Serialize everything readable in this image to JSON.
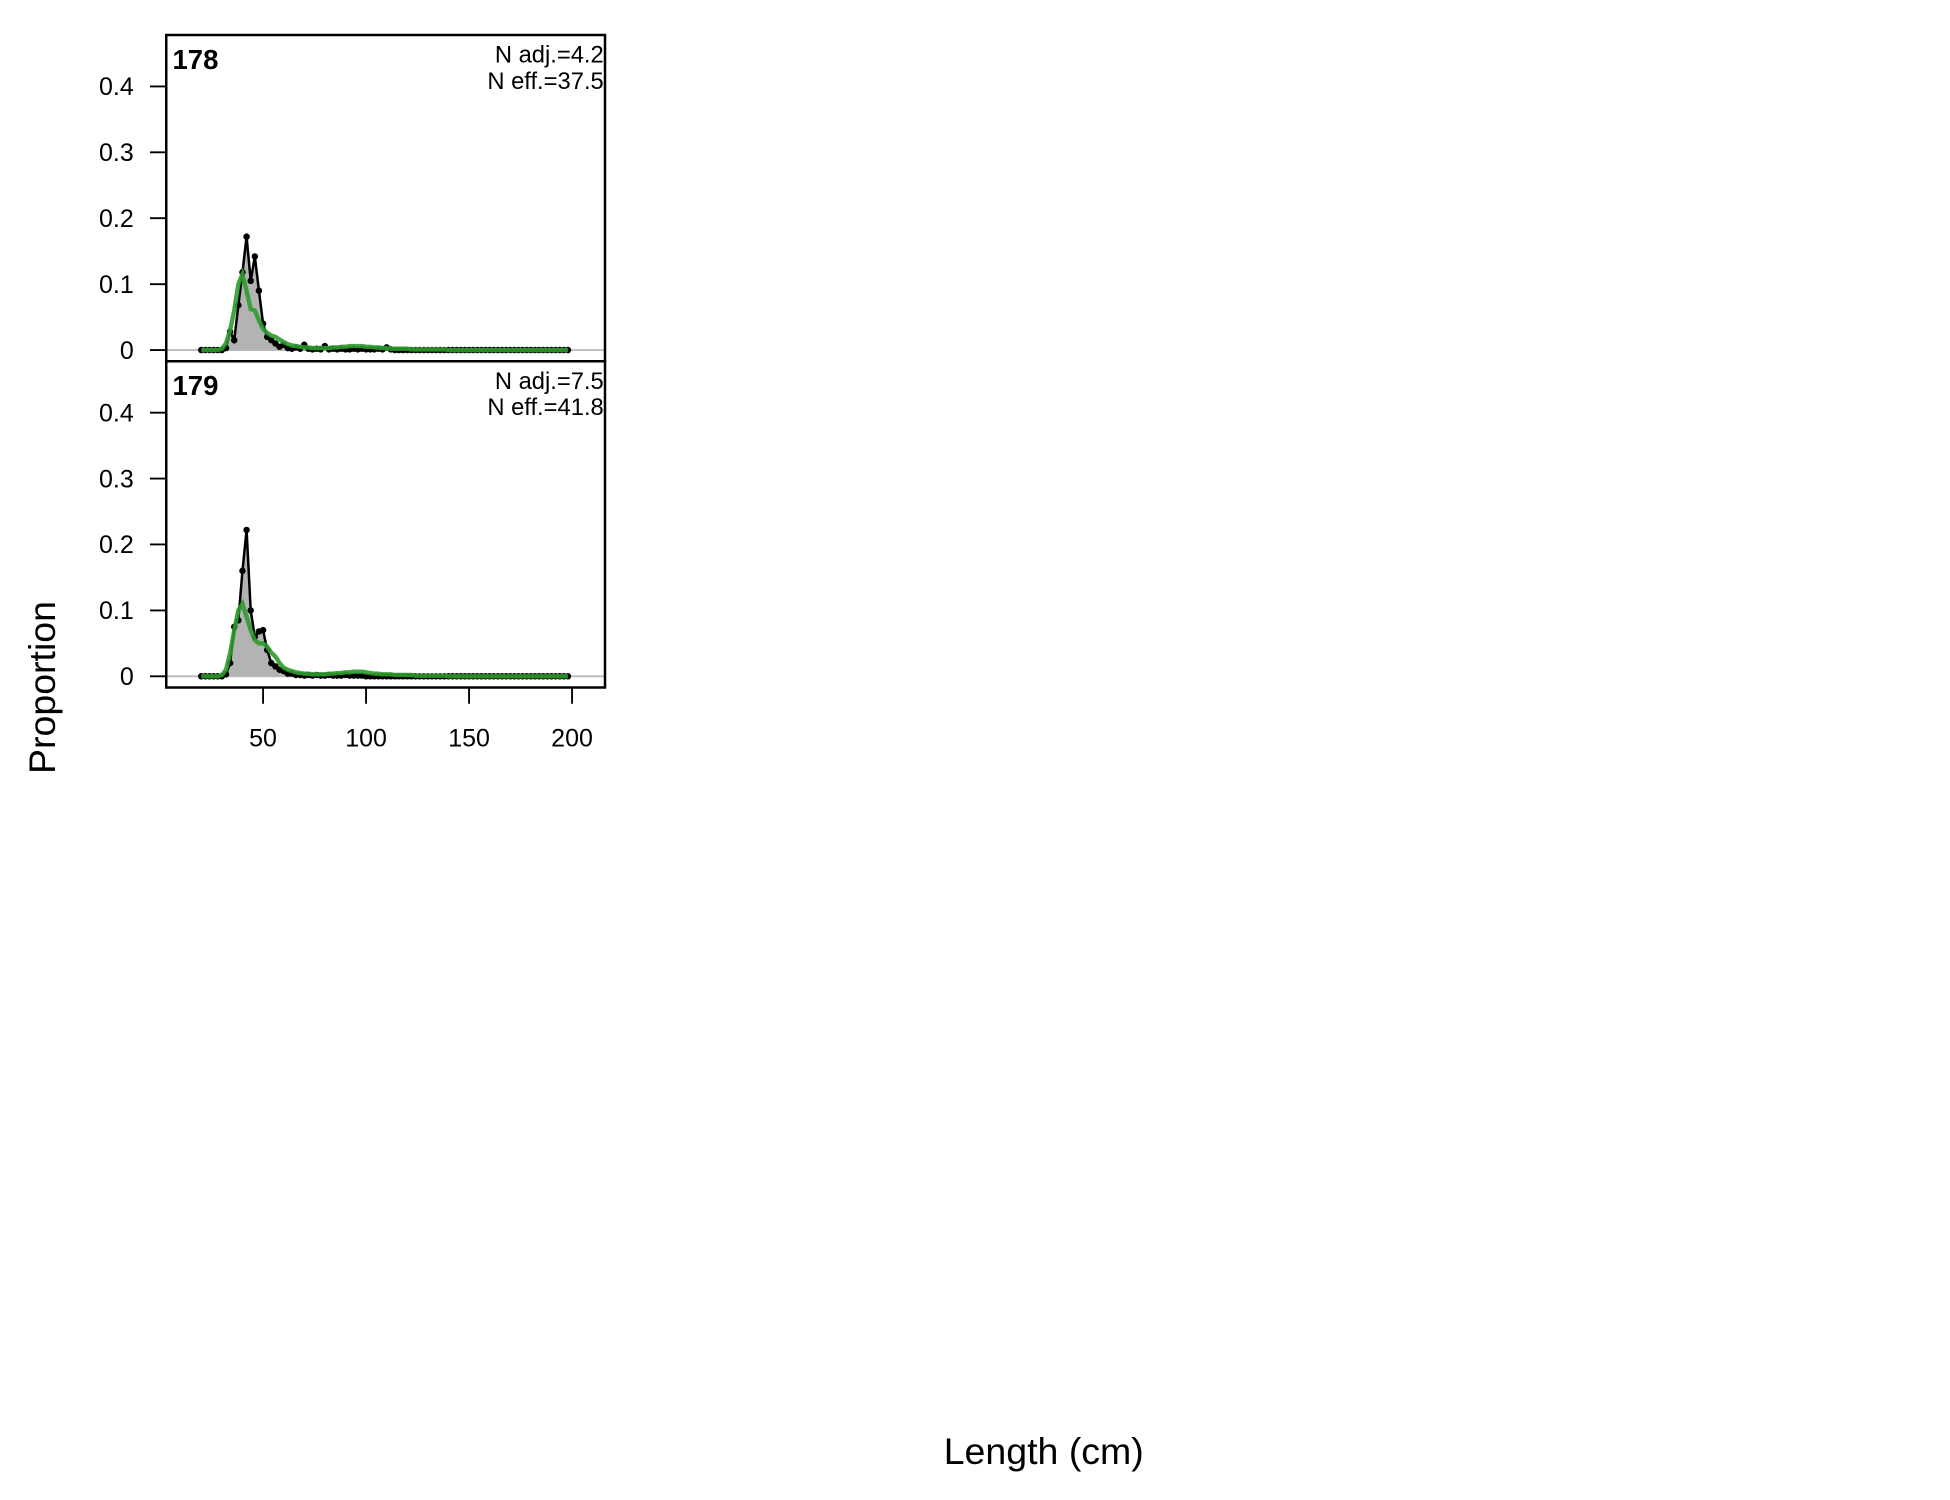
{
  "xlabel": "Length (cm)",
  "ylabel": "Proportion",
  "chart_data": [
    {
      "type": "line",
      "label": "178",
      "annotations": [
        "N adj.=4.2",
        "N eff.=37.5"
      ],
      "x": [
        20,
        22,
        24,
        26,
        28,
        30,
        32,
        34,
        36,
        38,
        40,
        42,
        44,
        46,
        48,
        50,
        52,
        54,
        56,
        58,
        60,
        62,
        64,
        66,
        68,
        70,
        72,
        74,
        76,
        78,
        80,
        82,
        84,
        86,
        88,
        90,
        92,
        94,
        96,
        98,
        100,
        102,
        104,
        106,
        108,
        110,
        112,
        114,
        116,
        118,
        120,
        122,
        124,
        126,
        128,
        130,
        132,
        134,
        136,
        138,
        140,
        142,
        144,
        146,
        148,
        150,
        152,
        154,
        156,
        158,
        160,
        162,
        164,
        166,
        168,
        170,
        172,
        174,
        176,
        178,
        180,
        182,
        184,
        186,
        188,
        190,
        192,
        194,
        196,
        198
      ],
      "xlim": [
        3,
        216
      ],
      "ylim": [
        -0.017,
        0.478
      ],
      "yticks": [
        0,
        0.1,
        0.2,
        0.3,
        0.4
      ],
      "series": [
        {
          "color": "#000000",
          "fill": "#b3b3b3",
          "values": [
            0,
            0,
            0,
            0,
            0,
            0,
            0.003,
            0.028,
            0.015,
            0.068,
            0.118,
            0.172,
            0.105,
            0.142,
            0.09,
            0.04,
            0.02,
            0.015,
            0.01,
            0.005,
            0.008,
            0.003,
            0.002,
            0.004,
            0.002,
            0.008,
            0.002,
            0.001,
            0.002,
            0.001,
            0.006,
            0.001,
            0.002,
            0.001,
            0.002,
            0.001,
            0.001,
            0.002,
            0.001,
            0.002,
            0.001,
            0.001,
            0.001,
            0.002,
            0.001,
            0.004,
            0.001,
            0,
            0,
            0,
            0,
            0,
            0,
            0,
            0,
            0,
            0,
            0,
            0,
            0,
            0,
            0,
            0,
            0,
            0,
            0,
            0,
            0,
            0,
            0,
            0,
            0,
            0,
            0,
            0,
            0,
            0,
            0,
            0,
            0,
            0,
            0,
            0,
            0,
            0,
            0,
            0,
            0,
            0,
            0
          ]
        },
        {
          "color": "#2e9b2e",
          "values": [
            0,
            0,
            0,
            0,
            0,
            0.002,
            0.01,
            0.03,
            0.06,
            0.1,
            0.115,
            0.09,
            0.062,
            0.06,
            0.045,
            0.032,
            0.026,
            0.022,
            0.02,
            0.016,
            0.012,
            0.009,
            0.007,
            0.006,
            0.005,
            0.004,
            0.004,
            0.003,
            0.003,
            0.003,
            0.003,
            0.003,
            0.004,
            0.004,
            0.005,
            0.005,
            0.006,
            0.006,
            0.006,
            0.006,
            0.005,
            0.005,
            0.004,
            0.004,
            0.003,
            0.003,
            0.002,
            0.002,
            0.002,
            0.002,
            0.002,
            0.001,
            0.001,
            0.001,
            0.001,
            0.001,
            0.001,
            0.001,
            0.001,
            0.001,
            0,
            0,
            0,
            0,
            0,
            0,
            0,
            0,
            0,
            0,
            0,
            0,
            0,
            0,
            0,
            0,
            0,
            0,
            0,
            0,
            0,
            0,
            0,
            0,
            0,
            0,
            0,
            0,
            0,
            0
          ]
        }
      ]
    },
    {
      "type": "line",
      "label": "179",
      "annotations": [
        "N adj.=7.5",
        "N eff.=41.8"
      ],
      "x": [
        20,
        22,
        24,
        26,
        28,
        30,
        32,
        34,
        36,
        38,
        40,
        42,
        44,
        46,
        48,
        50,
        52,
        54,
        56,
        58,
        60,
        62,
        64,
        66,
        68,
        70,
        72,
        74,
        76,
        78,
        80,
        82,
        84,
        86,
        88,
        90,
        92,
        94,
        96,
        98,
        100,
        102,
        104,
        106,
        108,
        110,
        112,
        114,
        116,
        118,
        120,
        122,
        124,
        126,
        128,
        130,
        132,
        134,
        136,
        138,
        140,
        142,
        144,
        146,
        148,
        150,
        152,
        154,
        156,
        158,
        160,
        162,
        164,
        166,
        168,
        170,
        172,
        174,
        176,
        178,
        180,
        182,
        184,
        186,
        188,
        190,
        192,
        194,
        196,
        198
      ],
      "xlim": [
        3,
        216
      ],
      "xticks": [
        50,
        100,
        150,
        200
      ],
      "ylim": [
        -0.017,
        0.478
      ],
      "yticks": [
        0,
        0.1,
        0.2,
        0.3,
        0.4
      ],
      "series": [
        {
          "color": "#000000",
          "fill": "#b3b3b3",
          "values": [
            0,
            0,
            0,
            0,
            0,
            0,
            0.003,
            0.02,
            0.075,
            0.085,
            0.16,
            0.222,
            0.1,
            0.06,
            0.068,
            0.07,
            0.04,
            0.02,
            0.015,
            0.01,
            0.008,
            0.004,
            0.004,
            0.002,
            0.002,
            0.001,
            0.002,
            0.001,
            0.002,
            0.001,
            0.001,
            0.002,
            0.001,
            0.001,
            0.001,
            0.002,
            0.001,
            0.001,
            0.001,
            0.001,
            0,
            0,
            0,
            0,
            0,
            0,
            0,
            0,
            0,
            0,
            0,
            0,
            0,
            0,
            0,
            0,
            0,
            0,
            0,
            0,
            0,
            0,
            0,
            0,
            0,
            0,
            0,
            0,
            0,
            0,
            0,
            0,
            0,
            0,
            0,
            0,
            0,
            0,
            0,
            0,
            0,
            0,
            0,
            0,
            0,
            0,
            0,
            0,
            0,
            0
          ]
        },
        {
          "color": "#2e9b2e",
          "values": [
            0,
            0,
            0,
            0,
            0,
            0.002,
            0.01,
            0.035,
            0.07,
            0.1,
            0.11,
            0.09,
            0.07,
            0.055,
            0.05,
            0.05,
            0.045,
            0.036,
            0.03,
            0.02,
            0.013,
            0.01,
            0.008,
            0.006,
            0.005,
            0.004,
            0.004,
            0.003,
            0.003,
            0.003,
            0.003,
            0.004,
            0.004,
            0.005,
            0.005,
            0.006,
            0.006,
            0.007,
            0.007,
            0.007,
            0.006,
            0.005,
            0.004,
            0.004,
            0.003,
            0.003,
            0.003,
            0.002,
            0.002,
            0.002,
            0.002,
            0.002,
            0.001,
            0.001,
            0.001,
            0.001,
            0.001,
            0.001,
            0.001,
            0.001,
            0,
            0,
            0,
            0,
            0,
            0,
            0,
            0,
            0,
            0,
            0,
            0,
            0,
            0,
            0,
            0,
            0,
            0,
            0,
            0,
            0,
            0,
            0,
            0,
            0,
            0,
            0,
            0,
            0,
            0
          ]
        }
      ]
    }
  ]
}
